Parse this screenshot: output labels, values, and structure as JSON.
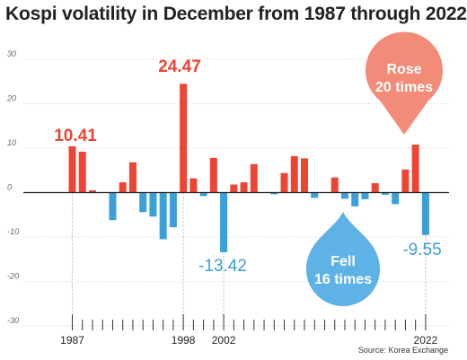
{
  "chart_data": {
    "type": "bar",
    "title": "Kospi volatility in December from 1987 through 2022",
    "source": "Source: Korea Exchange",
    "ylim": [
      -30,
      30
    ],
    "yticks": [
      30,
      20,
      10,
      0,
      -10,
      -20,
      -30
    ],
    "xlabels": [
      "1987",
      "1998",
      "2002",
      "2022"
    ],
    "x": [
      1987,
      1988,
      1989,
      1990,
      1991,
      1992,
      1993,
      1994,
      1995,
      1996,
      1997,
      1998,
      1999,
      2000,
      2001,
      2002,
      2003,
      2004,
      2005,
      2006,
      2007,
      2008,
      2009,
      2010,
      2011,
      2012,
      2013,
      2014,
      2015,
      2016,
      2017,
      2018,
      2019,
      2020,
      2021,
      2022
    ],
    "values": [
      10.41,
      9.2,
      0.5,
      0,
      -6.2,
      2.3,
      6.8,
      -4.4,
      -5.4,
      -10.5,
      -7.8,
      24.47,
      3.2,
      -0.8,
      7.8,
      -13.42,
      1.8,
      2.3,
      6.4,
      0,
      -0.4,
      4.4,
      8.2,
      7.7,
      -1.2,
      0,
      3.4,
      -1.4,
      -3.1,
      -1.5,
      2.1,
      -0.5,
      -2.6,
      5.2,
      10.8,
      -9.55
    ],
    "colors": {
      "up": "#ee4433",
      "down": "#3ba0d8"
    },
    "annotations": {
      "v1987": "10.41",
      "v1998": "24.47",
      "v2002": "-13.42",
      "v2022": "-9.55",
      "rose_line1": "Rose",
      "rose_line2": "20 times",
      "fell_line1": "Fell",
      "fell_line2": "16 times"
    },
    "badge_colors": {
      "rose": "#f28b78",
      "fell": "#5fb2e6"
    },
    "grid": true
  }
}
